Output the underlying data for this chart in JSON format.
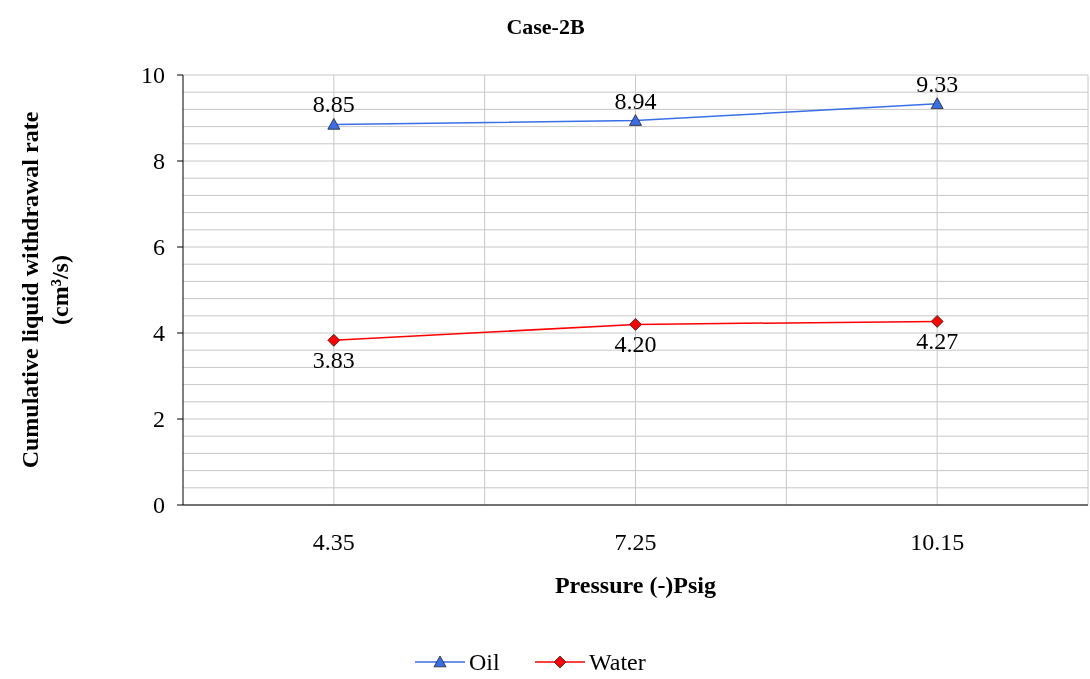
{
  "chart_data": {
    "type": "line",
    "title": "Case-2B",
    "xlabel": "Pressure (-)Psig",
    "ylabel": "Cumulative liquid withdrawal rate (cm³/s)",
    "categories": [
      "4.35",
      "7.25",
      "10.15"
    ],
    "series": [
      {
        "name": "Oil",
        "color": "#3a6ee8",
        "marker": "triangle",
        "values": [
          8.85,
          8.94,
          9.33
        ],
        "value_labels": [
          "8.85",
          "8.94",
          "9.33"
        ]
      },
      {
        "name": "Water",
        "color": "#ff0000",
        "marker": "diamond",
        "values": [
          3.83,
          4.2,
          4.27
        ],
        "value_labels": [
          "3.83",
          "4.20",
          "4.27"
        ]
      }
    ],
    "ylim": [
      0,
      10
    ],
    "yticks": [
      0,
      {
        "value": 0.4,
        "label": null
      },
      {
        "value": 0.8,
        "label": null
      },
      {
        "value": 1.2,
        "label": null
      },
      {
        "value": 1.6,
        "label": null
      },
      2,
      {
        "value": 2.4,
        "label": null
      },
      {
        "value": 2.8,
        "label": null
      },
      {
        "value": 3.2,
        "label": null
      },
      {
        "value": 3.6,
        "label": null
      },
      4,
      {
        "value": 4.4,
        "label": null
      },
      {
        "value": 4.8,
        "label": null
      },
      {
        "value": 5.2,
        "label": null
      },
      {
        "value": 5.6,
        "label": null
      },
      6,
      {
        "value": 6.4,
        "label": null
      },
      {
        "value": 6.8,
        "label": null
      },
      {
        "value": 7.2,
        "label": null
      },
      {
        "value": 7.6,
        "label": null
      },
      8,
      {
        "value": 8.4,
        "label": null
      },
      {
        "value": 8.8,
        "label": null
      },
      {
        "value": 9.2,
        "label": null
      },
      {
        "value": 9.6,
        "label": null
      },
      10
    ],
    "grid": true,
    "legend": "bottom",
    "line_style": "solid"
  }
}
